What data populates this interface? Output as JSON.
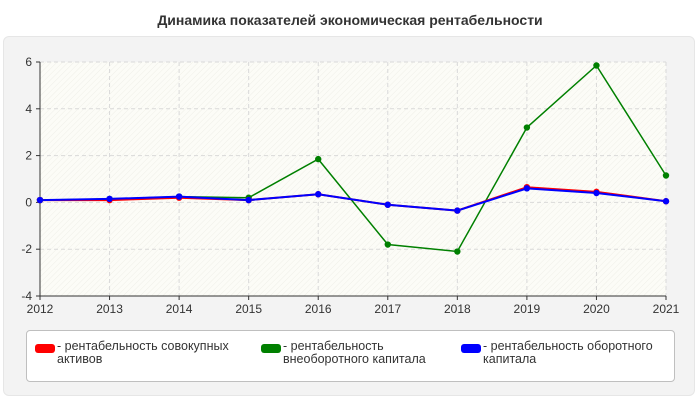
{
  "chart_data": {
    "type": "line",
    "title": "Динамика показателей экономическая рентабельности",
    "xlabel": "",
    "ylabel": "",
    "x": [
      2012,
      2013,
      2014,
      2015,
      2016,
      2017,
      2018,
      2019,
      2020,
      2021
    ],
    "ylim": [
      -4,
      6
    ],
    "yticks": [
      -4,
      -2,
      0,
      2,
      4,
      6
    ],
    "grid": true,
    "legend_position": "bottom",
    "series": [
      {
        "name": "- рентабельность совокупных активов",
        "color": "#ff0000",
        "values": [
          0.1,
          0.1,
          0.2,
          0.1,
          0.35,
          -0.1,
          -0.35,
          0.65,
          0.45,
          0.05
        ]
      },
      {
        "name": "- рентабельность внеоборотного капитала",
        "color": "#008000",
        "values": [
          0.1,
          0.15,
          0.25,
          0.2,
          1.85,
          -1.8,
          -2.1,
          3.2,
          5.85,
          1.15
        ]
      },
      {
        "name": "- рентабельность оборотного капитала",
        "color": "#0000ff",
        "values": [
          0.1,
          0.15,
          0.25,
          0.1,
          0.35,
          -0.1,
          -0.35,
          0.6,
          0.4,
          0.05
        ]
      }
    ]
  },
  "legend": {
    "items": [
      {
        "line1": "- рентабельность совокупных",
        "line2": "активов",
        "color": "#ff0000"
      },
      {
        "line1": "- рентабельность",
        "line2": "внеоборотного капитала",
        "color": "#008000"
      },
      {
        "line1": "- рентабельность оборотного",
        "line2": "капитала",
        "color": "#0000ff"
      }
    ]
  }
}
